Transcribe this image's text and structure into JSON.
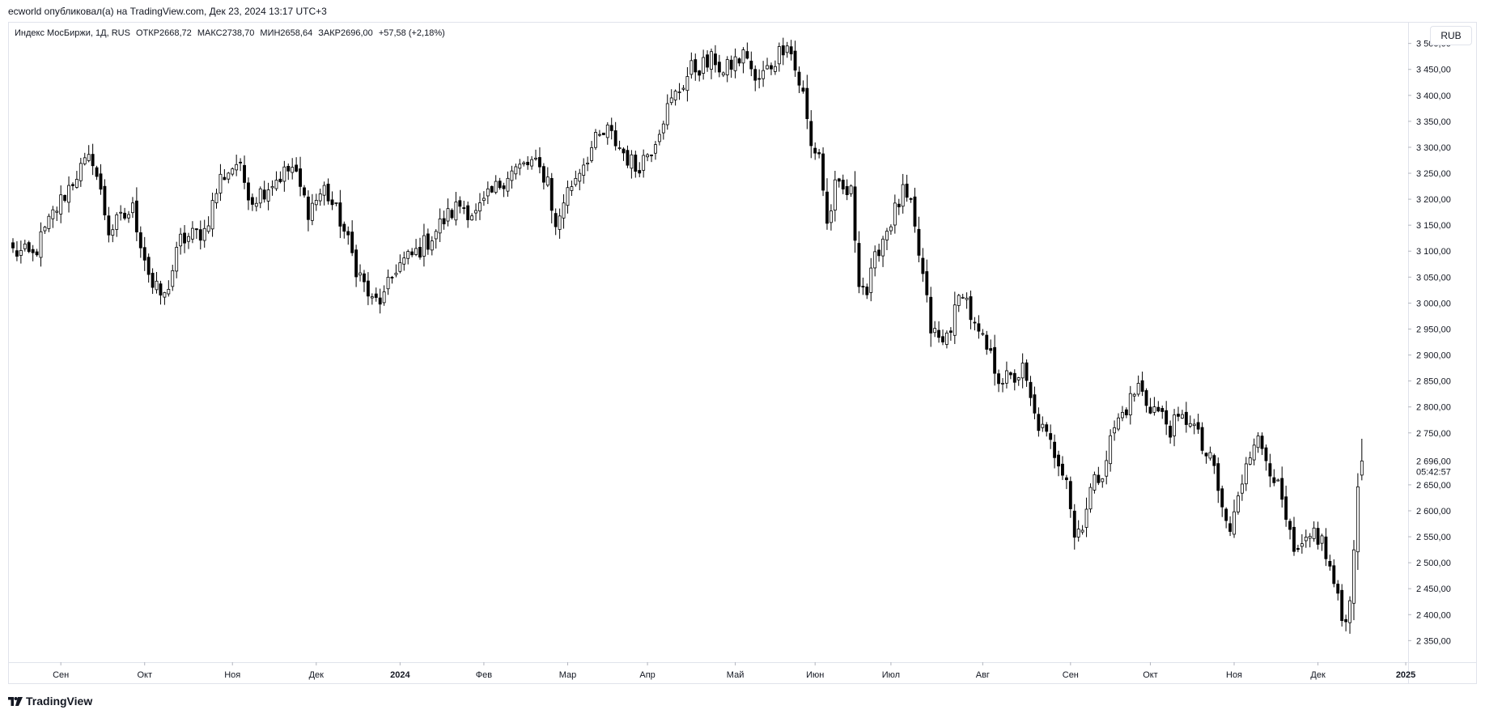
{
  "header": {
    "published_text": "ecworld опубликовал(а) на TradingView.com, Дек 23, 2024 13:17 UTC+3"
  },
  "legend": {
    "symbol": "Индекс МосБиржи, 1Д, RUS",
    "open": "ОТКР2668,72",
    "high": "МАКС2738,70",
    "low": "МИН2658,64",
    "close": "ЗАКР2696,00",
    "change": "+57,58 (+2,18%)"
  },
  "currency_button": {
    "label": "RUB"
  },
  "footer": {
    "logo_text": "TradingView"
  },
  "chart_data": {
    "type": "candlestick",
    "title": "Индекс МосБиржи, 1Д, RUS",
    "ylim": [
      2310,
      3540
    ],
    "y_ticks": [
      {
        "value": 3500,
        "label": "3 500,00"
      },
      {
        "value": 3450,
        "label": "3 450,00"
      },
      {
        "value": 3400,
        "label": "3 400,00"
      },
      {
        "value": 3350,
        "label": "3 350,00"
      },
      {
        "value": 3300,
        "label": "3 300,00"
      },
      {
        "value": 3250,
        "label": "3 250,00"
      },
      {
        "value": 3200,
        "label": "3 200,00"
      },
      {
        "value": 3150,
        "label": "3 150,00"
      },
      {
        "value": 3100,
        "label": "3 100,00"
      },
      {
        "value": 3050,
        "label": "3 050,00"
      },
      {
        "value": 3000,
        "label": "3 000,00"
      },
      {
        "value": 2950,
        "label": "2 950,00"
      },
      {
        "value": 2900,
        "label": "2 900,00"
      },
      {
        "value": 2850,
        "label": "2 850,00"
      },
      {
        "value": 2800,
        "label": "2 800,00"
      },
      {
        "value": 2750,
        "label": "2 750,00"
      },
      {
        "value": 2650,
        "label": "2 650,00"
      },
      {
        "value": 2600,
        "label": "2 600,00"
      },
      {
        "value": 2550,
        "label": "2 550,00"
      },
      {
        "value": 2500,
        "label": "2 500,00"
      },
      {
        "value": 2450,
        "label": "2 450,00"
      },
      {
        "value": 2400,
        "label": "2 400,00"
      },
      {
        "value": 2350,
        "label": "2 350,00"
      }
    ],
    "last_price": {
      "value": 2696,
      "label": "2 696,00",
      "countdown": "05:42:57"
    },
    "x_ticks": [
      {
        "label": "Сен",
        "index": 12,
        "bold": false
      },
      {
        "label": "Окт",
        "index": 33,
        "bold": false
      },
      {
        "label": "Ноя",
        "index": 55,
        "bold": false
      },
      {
        "label": "Дек",
        "index": 76,
        "bold": false
      },
      {
        "label": "2024",
        "index": 97,
        "bold": true
      },
      {
        "label": "Фев",
        "index": 118,
        "bold": false
      },
      {
        "label": "Мар",
        "index": 139,
        "bold": false
      },
      {
        "label": "Апр",
        "index": 159,
        "bold": false
      },
      {
        "label": "Май",
        "index": 181,
        "bold": false
      },
      {
        "label": "Июн",
        "index": 201,
        "bold": false
      },
      {
        "label": "Июл",
        "index": 220,
        "bold": false
      },
      {
        "label": "Авг",
        "index": 243,
        "bold": false
      },
      {
        "label": "Сен",
        "index": 265,
        "bold": false
      },
      {
        "label": "Окт",
        "index": 285,
        "bold": false
      },
      {
        "label": "Ноя",
        "index": 306,
        "bold": false
      },
      {
        "label": "Дек",
        "index": 327,
        "bold": false
      },
      {
        "label": "2025",
        "index": 349,
        "bold": true
      }
    ],
    "anchors": [
      [
        0,
        3100
      ],
      [
        5,
        3090
      ],
      [
        10,
        3170
      ],
      [
        16,
        3250
      ],
      [
        20,
        3280
      ],
      [
        24,
        3140
      ],
      [
        30,
        3180
      ],
      [
        35,
        3030
      ],
      [
        38,
        3010
      ],
      [
        42,
        3120
      ],
      [
        48,
        3140
      ],
      [
        52,
        3240
      ],
      [
        56,
        3270
      ],
      [
        60,
        3200
      ],
      [
        66,
        3240
      ],
      [
        70,
        3260
      ],
      [
        74,
        3180
      ],
      [
        78,
        3220
      ],
      [
        82,
        3160
      ],
      [
        86,
        3070
      ],
      [
        90,
        3000
      ],
      [
        93,
        3010
      ],
      [
        96,
        3070
      ],
      [
        100,
        3090
      ],
      [
        104,
        3120
      ],
      [
        108,
        3160
      ],
      [
        112,
        3190
      ],
      [
        116,
        3170
      ],
      [
        120,
        3210
      ],
      [
        124,
        3250
      ],
      [
        130,
        3270
      ],
      [
        134,
        3240
      ],
      [
        136,
        3140
      ],
      [
        138,
        3200
      ],
      [
        142,
        3260
      ],
      [
        146,
        3310
      ],
      [
        149,
        3330
      ],
      [
        152,
        3300
      ],
      [
        156,
        3260
      ],
      [
        160,
        3300
      ],
      [
        163,
        3360
      ],
      [
        166,
        3400
      ],
      [
        170,
        3450
      ],
      [
        174,
        3460
      ],
      [
        176,
        3470
      ],
      [
        178,
        3440
      ],
      [
        180,
        3460
      ],
      [
        184,
        3480
      ],
      [
        186,
        3420
      ],
      [
        188,
        3440
      ],
      [
        191,
        3470
      ],
      [
        194,
        3510
      ],
      [
        196,
        3450
      ],
      [
        198,
        3400
      ],
      [
        200,
        3300
      ],
      [
        202,
        3290
      ],
      [
        204,
        3150
      ],
      [
        206,
        3220
      ],
      [
        210,
        3210
      ],
      [
        212,
        3050
      ],
      [
        214,
        3020
      ],
      [
        217,
        3110
      ],
      [
        220,
        3160
      ],
      [
        223,
        3210
      ],
      [
        225,
        3180
      ],
      [
        228,
        3050
      ],
      [
        230,
        2950
      ],
      [
        233,
        2920
      ],
      [
        236,
        2980
      ],
      [
        238,
        3030
      ],
      [
        241,
        2950
      ],
      [
        244,
        2910
      ],
      [
        247,
        2860
      ],
      [
        250,
        2850
      ],
      [
        253,
        2870
      ],
      [
        256,
        2780
      ],
      [
        259,
        2740
      ],
      [
        262,
        2700
      ],
      [
        264,
        2670
      ],
      [
        266,
        2550
      ],
      [
        268,
        2580
      ],
      [
        270,
        2640
      ],
      [
        273,
        2680
      ],
      [
        276,
        2760
      ],
      [
        279,
        2800
      ],
      [
        282,
        2840
      ],
      [
        284,
        2810
      ],
      [
        287,
        2790
      ],
      [
        290,
        2760
      ],
      [
        292,
        2770
      ],
      [
        295,
        2780
      ],
      [
        298,
        2720
      ],
      [
        301,
        2680
      ],
      [
        303,
        2600
      ],
      [
        305,
        2560
      ],
      [
        307,
        2620
      ],
      [
        309,
        2700
      ],
      [
        311,
        2740
      ],
      [
        313,
        2720
      ],
      [
        316,
        2670
      ],
      [
        319,
        2580
      ],
      [
        321,
        2510
      ],
      [
        324,
        2530
      ],
      [
        326,
        2560
      ],
      [
        328,
        2540
      ],
      [
        331,
        2460
      ],
      [
        333,
        2390
      ],
      [
        335,
        2420
      ],
      [
        337,
        2660
      ],
      [
        338,
        2700
      ]
    ],
    "bars": 339,
    "last_candle": {
      "open": 2668.72,
      "high": 2738.7,
      "low": 2658.64,
      "close": 2696.0
    }
  },
  "colors": {
    "candle": "#000000",
    "bg": "#ffffff",
    "axis_text": "#131722",
    "border": "#e0e3eb"
  }
}
